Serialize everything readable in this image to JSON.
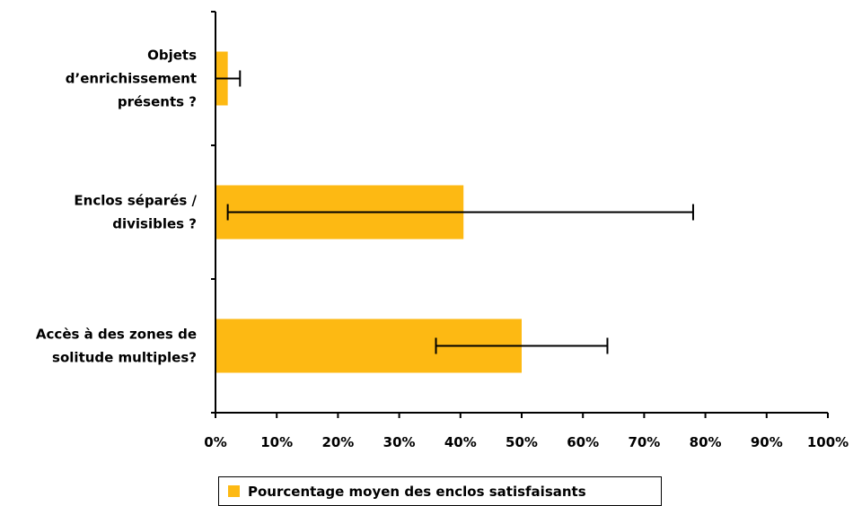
{
  "chart_data": {
    "type": "bar",
    "orientation": "horizontal",
    "categories": [
      [
        "Objets",
        "d’enrichissement",
        "présents ?"
      ],
      [
        "Enclos séparés /",
        "divisibles ?"
      ],
      [
        "Accès à des zones de",
        "solitude multiples?"
      ]
    ],
    "series": [
      {
        "name": "Pourcentage moyen des enclos satisfaisants",
        "values": [
          2,
          40.5,
          50
        ],
        "error_low": [
          0,
          2,
          36
        ],
        "error_high": [
          4,
          78,
          64
        ]
      }
    ],
    "x_ticks": [
      "0%",
      "10%",
      "20%",
      "30%",
      "40%",
      "50%",
      "60%",
      "70%",
      "80%",
      "90%",
      "100%"
    ],
    "xlim": [
      0,
      100
    ],
    "grid": false,
    "legend_position": "bottom",
    "colors": {
      "bar": "#FDB913",
      "axis": "#000000",
      "error_bar": "#000000"
    }
  }
}
